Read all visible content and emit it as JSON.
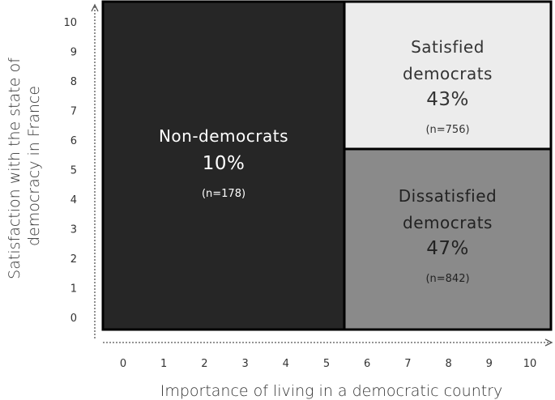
{
  "chart_data": {
    "type": "diagram",
    "x_axis": {
      "label": "Importance of living in a democratic country",
      "ticks": [
        "0",
        "1",
        "2",
        "3",
        "4",
        "5",
        "6",
        "7",
        "8",
        "9",
        "10"
      ]
    },
    "y_axis": {
      "label_lines": [
        "Satisfaction with the state of",
        "democracy in France"
      ],
      "ticks": [
        "0",
        "1",
        "2",
        "3",
        "4",
        "5",
        "6",
        "7",
        "8",
        "9",
        "10"
      ]
    },
    "regions": [
      {
        "id": "non-democrats",
        "label_lines": [
          "Non-democrats"
        ],
        "percent": "10%",
        "n": "(n=178)",
        "x_range": [
          0,
          5
        ],
        "y_range": [
          0,
          10
        ],
        "fill": "#262626",
        "text_color": "#ffffff"
      },
      {
        "id": "satisfied-democrats",
        "label_lines": [
          "Satisfied",
          "democrats"
        ],
        "percent": "43%",
        "n": "(n=756)",
        "x_range": [
          6,
          10
        ],
        "y_range": [
          6,
          10
        ],
        "fill": "#ececec",
        "text_color": "#333333"
      },
      {
        "id": "dissatisfied-democrats",
        "label_lines": [
          "Dissatisfied",
          "democrats"
        ],
        "percent": "47%",
        "n": "(n=842)",
        "x_range": [
          6,
          10
        ],
        "y_range": [
          0,
          5
        ],
        "fill": "#8a8a8a",
        "text_color": "#222222"
      }
    ]
  }
}
